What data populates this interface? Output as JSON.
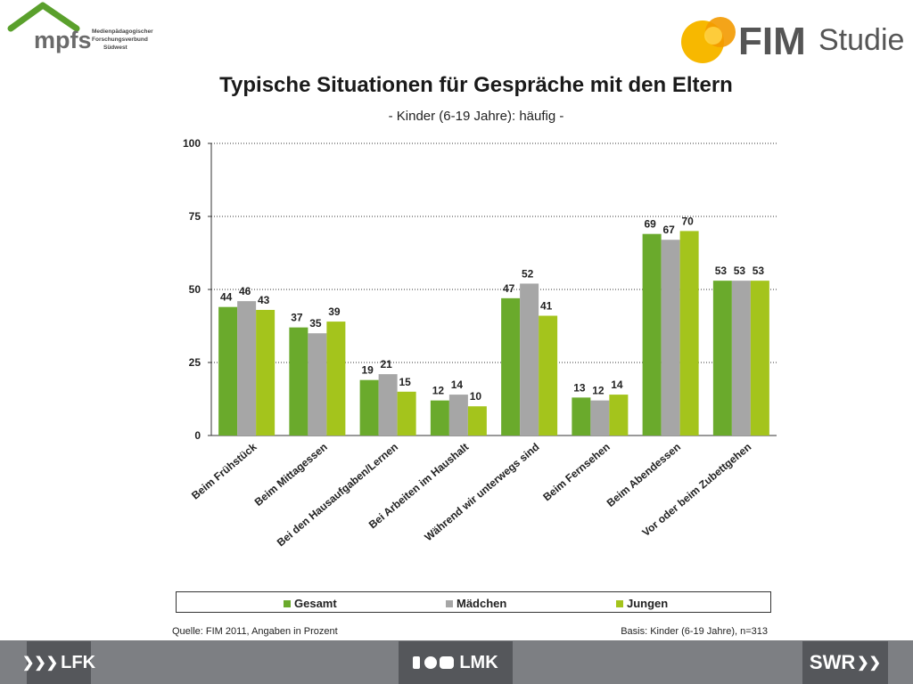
{
  "header": {
    "mpfs_logo": "mpfs",
    "mpfs_sub": [
      "Medienpädagogischer",
      "Forschungsverbund",
      "Südwest"
    ],
    "fim_logo_bold": "FIM",
    "fim_logo_light": "Studie"
  },
  "chart_data": {
    "type": "bar",
    "title": "Typische Situationen für Gespräche mit den Eltern",
    "subtitle": "- Kinder (6-19 Jahre): häufig -",
    "categories": [
      "Beim Frühstück",
      "Beim Mittagessen",
      "Bei den Hausaufgaben/Lernen",
      "Bei Arbeiten  im Haushalt",
      "Während wir unterwegs sind",
      "Beim Fernsehen",
      "Beim Abendessen",
      "Vor oder beim Zubettgehen"
    ],
    "series": [
      {
        "name": "Gesamt",
        "color": "#6aaa2c",
        "values": [
          44,
          37,
          19,
          12,
          47,
          13,
          69,
          53
        ]
      },
      {
        "name": "Mädchen",
        "color": "#a6a6a6",
        "values": [
          46,
          35,
          21,
          14,
          52,
          12,
          67,
          53
        ]
      },
      {
        "name": "Jungen",
        "color": "#a4c41c",
        "values": [
          43,
          39,
          15,
          10,
          41,
          14,
          70,
          53
        ]
      }
    ],
    "ylim": [
      0,
      100
    ],
    "yticks": [
      0,
      25,
      50,
      75,
      100
    ],
    "grid": true,
    "legend_position": "bottom"
  },
  "legend": [
    "Gesamt",
    "Mädchen",
    "Jungen"
  ],
  "footer": {
    "source": "Quelle: FIM 2011,  Angaben in Prozent",
    "basis": "Basis: Kinder (6-19 Jahre), n=313",
    "logos": [
      "LFK",
      "LMK",
      "SWR"
    ]
  }
}
